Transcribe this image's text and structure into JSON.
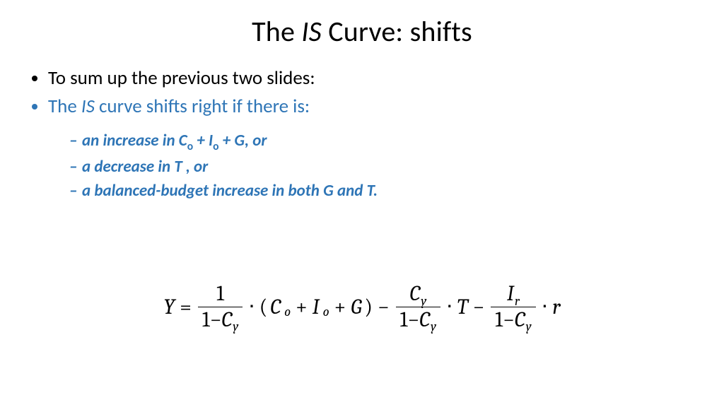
{
  "title": {
    "pre": "The ",
    "ital": "IS",
    "post": " Curve: shifts",
    "color": "#000000",
    "fontsize": 40
  },
  "colors": {
    "background": "#ffffff",
    "text": "#000000",
    "accent": "#2e75b6"
  },
  "bullets": {
    "b1": "To sum up the previous two slides:",
    "b2_pre": "The ",
    "b2_ital": "IS",
    "b2_post": " curve shifts right if there is:",
    "s1_a": "an increase in ",
    "s1_C": "C",
    "s1_Co": "o",
    "s1_plus1": " + ",
    "s1_I": "I",
    "s1_Io": "o",
    "s1_plus2": " + ",
    "s1_G": "G",
    "s1_tail": ", or",
    "s2_a": "a decrease in ",
    "s2_T": "T",
    "s2_tail": " , or",
    "s3_a": "a balanced-budget increase in both ",
    "s3_G": "G",
    "s3_mid": " and ",
    "s3_T": "T",
    "s3_tail": "."
  },
  "equation": {
    "Y": "Y",
    "eq": "=",
    "one": "1",
    "minus": "−",
    "C": "C",
    "y": "y",
    "dot": "⋅",
    "lp": "(",
    "o": "o",
    "plus": "+",
    "I": "I",
    "G": "G",
    "rp": ")",
    "T": "T",
    "r": "r",
    "Ir_r": "r",
    "fontsize": 30
  }
}
